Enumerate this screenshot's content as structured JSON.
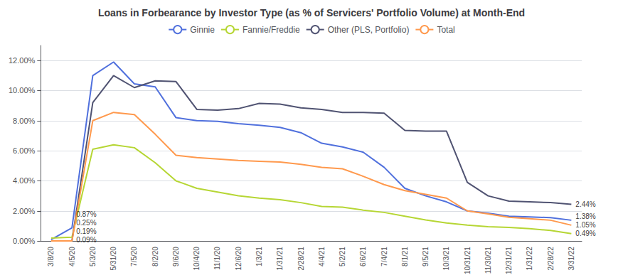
{
  "chart_data": {
    "type": "line",
    "title": "Loans in Forbearance by Investor Type (as % of Servicers' Portfolio Volume) at Month-End",
    "categories": [
      "3/8/20",
      "4/5/20",
      "5/3/20",
      "5/31/20",
      "7/5/20",
      "8/2/20",
      "9/6/20",
      "10/4/20",
      "11/1/20",
      "12/6/20",
      "1/3/21",
      "1/31/21",
      "2/28/21",
      "4/4/21",
      "5/2/21",
      "6/6/21",
      "7/4/21",
      "8/1/21",
      "9/5/21",
      "10/3/21",
      "10/31/21",
      "11/30/21",
      "12/31/21",
      "1/31/22",
      "2/28/22",
      "3/31/22"
    ],
    "series": [
      {
        "name": "Ginnie",
        "values": [
          0.0009,
          0.0087,
          0.11,
          0.119,
          0.1045,
          0.1025,
          0.082,
          0.08,
          0.0795,
          0.078,
          0.077,
          0.0755,
          0.072,
          0.065,
          0.0625,
          0.059,
          0.049,
          0.035,
          0.03,
          0.026,
          0.02,
          0.0185,
          0.0165,
          0.016,
          0.0155,
          0.0138
        ]
      },
      {
        "name": "Fannie/Freddie",
        "values": [
          0.0019,
          0.0025,
          0.061,
          0.064,
          0.062,
          0.052,
          0.04,
          0.035,
          0.0325,
          0.03,
          0.0285,
          0.0275,
          0.0255,
          0.023,
          0.0225,
          0.0205,
          0.019,
          0.0165,
          0.014,
          0.012,
          0.0105,
          0.0095,
          0.009,
          0.0082,
          0.007,
          0.0049
        ]
      },
      {
        "name": "Other (PLS, Portfolio)",
        "values": [
          0.0,
          0.0,
          0.092,
          0.11,
          0.102,
          0.1065,
          0.106,
          0.0875,
          0.087,
          0.088,
          0.0915,
          0.091,
          0.0885,
          0.0875,
          0.0855,
          0.0855,
          0.085,
          0.0735,
          0.073,
          0.073,
          0.039,
          0.03,
          0.0265,
          0.026,
          0.0255,
          0.0244
        ]
      },
      {
        "name": "Total",
        "values": [
          0.0,
          0.0,
          0.08,
          0.0855,
          0.084,
          0.071,
          0.057,
          0.0555,
          0.0545,
          0.0535,
          0.053,
          0.0525,
          0.051,
          0.049,
          0.048,
          0.043,
          0.0375,
          0.0335,
          0.031,
          0.0285,
          0.02,
          0.018,
          0.0158,
          0.0148,
          0.0138,
          0.0105
        ]
      }
    ],
    "ylim": [
      0,
      0.13
    ],
    "yticks": [
      {
        "value": 0,
        "label": "0.00%"
      },
      {
        "value": 0.02,
        "label": "2.00%"
      },
      {
        "value": 0.04,
        "label": "4.00%"
      },
      {
        "value": 0.06,
        "label": "6.00%"
      },
      {
        "value": 0.08,
        "label": "8.00%"
      },
      {
        "value": 0.1,
        "label": "10.00%"
      },
      {
        "value": 0.12,
        "label": "12.00%"
      }
    ],
    "grid": true,
    "legend": "top",
    "annotations": [
      {
        "text": "0.87%",
        "x": "4/5/20",
        "y": 0.0087
      },
      {
        "text": "0.25%",
        "x": "4/5/20",
        "y": 0.0025
      },
      {
        "text": "0.19%",
        "x": "4/5/20",
        "y": 0.0019
      },
      {
        "text": "0.09%",
        "x": "4/5/20",
        "y": 0.0009
      },
      {
        "text": "2.44%",
        "x": "3/31/22",
        "y": 0.0244
      },
      {
        "text": "1.38%",
        "x": "3/31/22",
        "y": 0.0138
      },
      {
        "text": "1.05%",
        "x": "3/31/22",
        "y": 0.0105
      },
      {
        "text": "0.49%",
        "x": "3/31/22",
        "y": 0.0049
      }
    ]
  }
}
